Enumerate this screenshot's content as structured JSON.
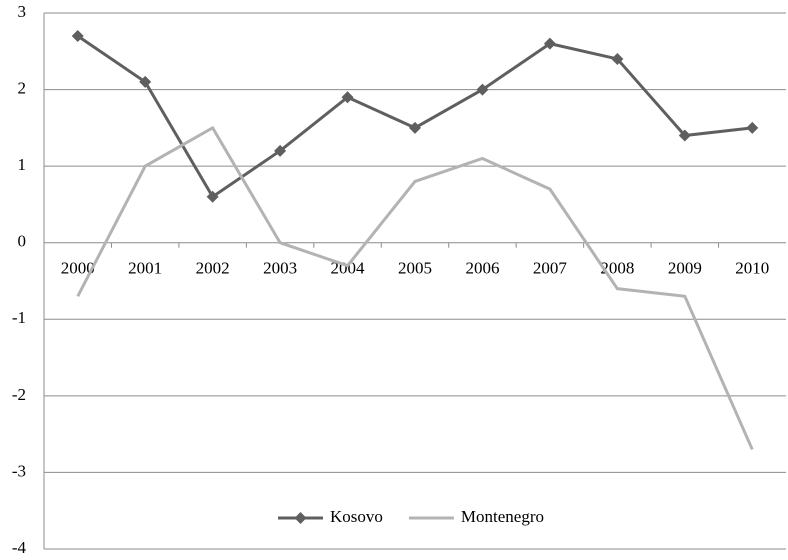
{
  "chart_data": {
    "type": "line",
    "categories": [
      "2000",
      "2001",
      "2002",
      "2003",
      "2004",
      "2005",
      "2006",
      "2007",
      "2008",
      "2009",
      "2010"
    ],
    "series": [
      {
        "name": "Kosovo",
        "color": "#5f5f5f",
        "marker": "diamond",
        "values": [
          2.7,
          2.1,
          0.6,
          1.2,
          1.9,
          1.5,
          2.0,
          2.6,
          2.4,
          1.4,
          1.5
        ]
      },
      {
        "name": "Montenegro",
        "color": "#b3b3b3",
        "values": [
          -0.7,
          1.0,
          1.5,
          0.0,
          -0.3,
          0.8,
          1.1,
          0.7,
          -0.6,
          -0.7,
          -2.7
        ]
      }
    ],
    "ylim": [
      -4,
      3
    ],
    "yticks": [
      -4,
      -3,
      -2,
      -1,
      0,
      1,
      2,
      3
    ],
    "grid": true,
    "legend": "bottom"
  }
}
